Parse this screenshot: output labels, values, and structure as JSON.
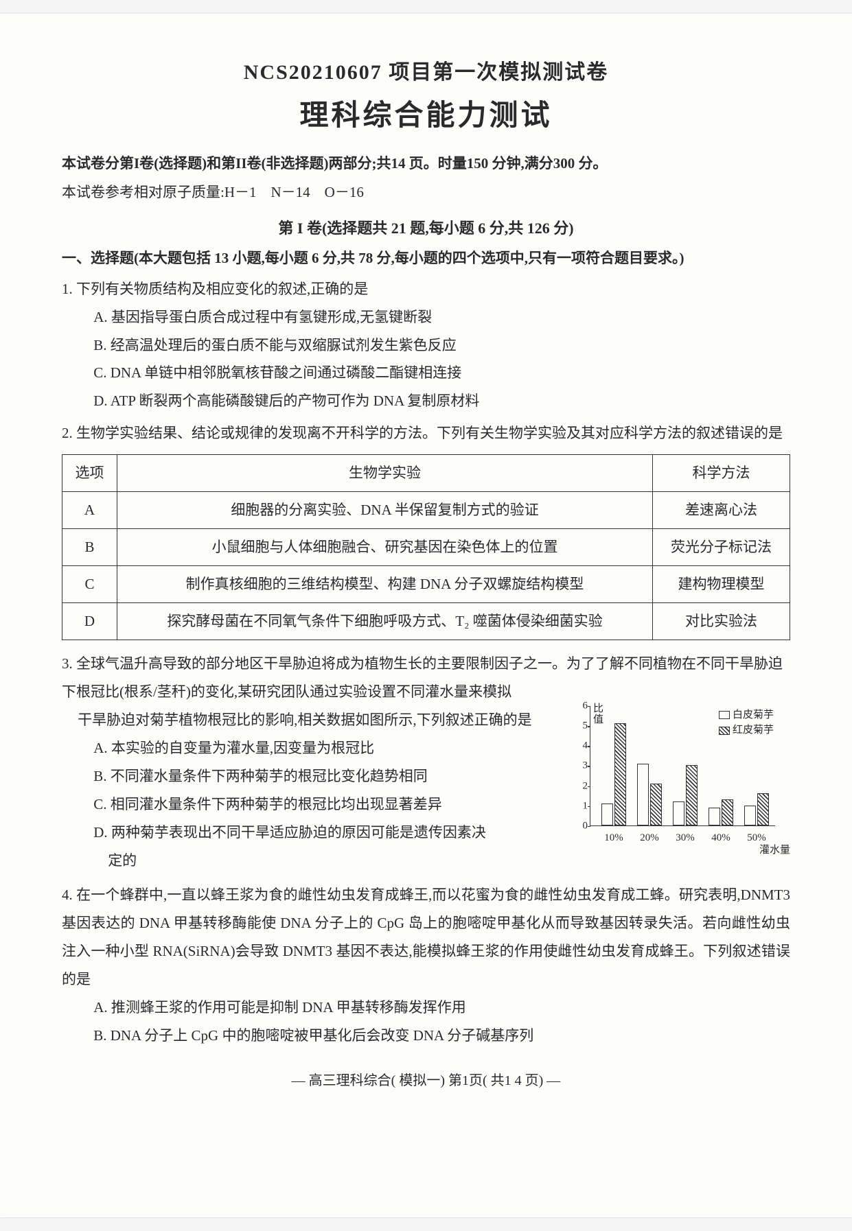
{
  "header": {
    "title1": "NCS20210607 项目第一次模拟测试卷",
    "title2": "理科综合能力测试",
    "intro_bold": "本试卷分第I卷(选择题)和第II卷(非选择题)两部分;共14 页。时量150 分钟,满分300 分。",
    "intro2": "本试卷参考相对原子质量:H－1　N－14　O－16",
    "section1": "第 I 卷(选择题共 21 题,每小题 6 分,共 126 分)",
    "instruction": "一、选择题(本大题包括 13 小题,每小题 6 分,共 78 分,每小题的四个选项中,只有一项符合题目要求。)"
  },
  "q1": {
    "stem": "1. 下列有关物质结构及相应变化的叙述,正确的是",
    "A": "A. 基因指导蛋白质合成过程中有氢键形成,无氢键断裂",
    "B": "B. 经高温处理后的蛋白质不能与双缩脲试剂发生紫色反应",
    "C": "C. DNA 单链中相邻脱氧核苷酸之间通过磷酸二酯键相连接",
    "D": "D. ATP 断裂两个高能磷酸键后的产物可作为 DNA 复制原材料"
  },
  "q2": {
    "stem": "2. 生物学实验结果、结论或规律的发现离不开科学的方法。下列有关生物学实验及其对应科学方法的叙述错误的是",
    "table": {
      "headers": [
        "选项",
        "生物学实验",
        "科学方法"
      ],
      "rows": [
        [
          "A",
          "细胞器的分离实验、DNA 半保留复制方式的验证",
          "差速离心法"
        ],
        [
          "B",
          "小鼠细胞与人体细胞融合、研究基因在染色体上的位置",
          "荧光分子标记法"
        ],
        [
          "C",
          "制作真核细胞的三维结构模型、构建 DNA 分子双螺旋结构模型",
          "建构物理模型"
        ],
        [
          "D",
          "探究酵母菌在不同氧气条件下细胞呼吸方式、T₂ 噬菌体侵染细菌实验",
          "对比实验法"
        ]
      ]
    }
  },
  "q3": {
    "stem1": "3. 全球气温升高导致的部分地区干旱胁迫将成为植物生长的主要限制因子之一。为了了解不同植物在不同干旱胁迫下根冠比(根系/茎秆)的变化,某研究团队通过实验设置不同灌水量来模拟",
    "stem2": "干旱胁迫对菊芋植物根冠比的影响,相关数据如图所示,下列叙述正确的是",
    "A": "A. 本实验的自变量为灌水量,因变量为根冠比",
    "B": "B. 不同灌水量条件下两种菊芋的根冠比变化趋势相同",
    "C": "C. 相同灌水量条件下两种菊芋的根冠比均出现显著差异",
    "D": "D. 两种菊芋表现出不同干旱适应胁迫的原因可能是遗传因素决",
    "D2": "定的",
    "chart": {
      "ylabel": "比值",
      "ymax": 6,
      "yticks": [
        0,
        1,
        2,
        3,
        4,
        5,
        6
      ],
      "legend": [
        "白皮菊芋",
        "红皮菊芋"
      ],
      "legend_colors": [
        "#ffffff",
        "hatched"
      ],
      "categories": [
        "10%",
        "20%",
        "30%",
        "40%",
        "50%"
      ],
      "series_white": [
        1.1,
        3.1,
        1.2,
        0.9,
        1.0
      ],
      "series_hatched": [
        5.1,
        2.1,
        3.0,
        1.3,
        1.6
      ],
      "xlabel": "灌水量",
      "bar_border": "#333333",
      "axis_color": "#333333"
    }
  },
  "q4": {
    "stem": "4. 在一个蜂群中,一直以蜂王浆为食的雌性幼虫发育成蜂王,而以花蜜为食的雌性幼虫发育成工蜂。研究表明,DNMT3 基因表达的 DNA 甲基转移酶能使 DNA 分子上的 CpG 岛上的胞嘧啶甲基化从而导致基因转录失活。若向雌性幼虫注入一种小型 RNA(SiRNA)会导致 DNMT3 基因不表达,能模拟蜂王浆的作用使雌性幼虫发育成蜂王。下列叙述错误的是",
    "A": "A. 推测蜂王浆的作用可能是抑制 DNA 甲基转移酶发挥作用",
    "B": "B. DNA 分子上 CpG 中的胞嘧啶被甲基化后会改变 DNA 分子碱基序列"
  },
  "footer": "— 高三理科综合( 模拟一) 第1页( 共1 4 页) —"
}
